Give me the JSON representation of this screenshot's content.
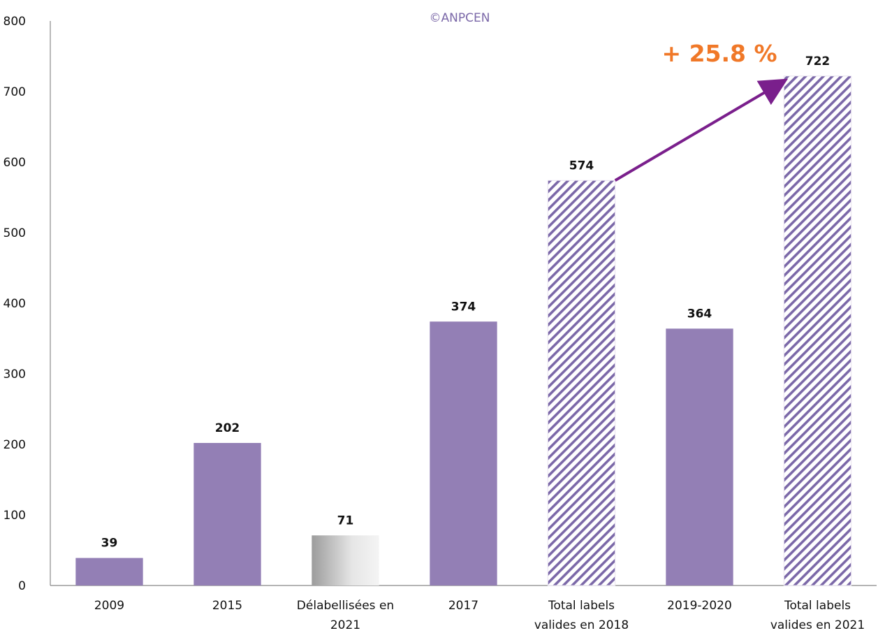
{
  "chart_data": {
    "type": "bar",
    "credit": "©ANPCEN",
    "categories": [
      [
        "2009"
      ],
      [
        "2015"
      ],
      [
        "Délabellisées en",
        "2021"
      ],
      [
        "2017"
      ],
      [
        "Total labels",
        "valides en 2018"
      ],
      [
        "2019-2020"
      ],
      [
        "Total labels",
        "valides en 2021"
      ]
    ],
    "values": [
      39,
      202,
      71,
      374,
      574,
      364,
      722
    ],
    "bar_styles": [
      "solid",
      "solid",
      "gradient",
      "solid",
      "hatched",
      "solid",
      "hatched"
    ],
    "ylim": [
      0,
      800
    ],
    "yticks": [
      0,
      100,
      200,
      300,
      400,
      500,
      600,
      700,
      800
    ],
    "grid": false,
    "legend": "none",
    "annotation": {
      "text": "+ 25.8 %",
      "from_category": 4,
      "to_category": 6
    },
    "colors": {
      "bar": "#937fb5",
      "hatch": "#7b68a8",
      "gradient_light": "#f4f4f4",
      "gradient_dark": "#9c9c9c",
      "arrow": "#7a1f8c",
      "growth_text": "#f07828",
      "credit_text": "#7b68a8",
      "axis": "#888888"
    }
  }
}
